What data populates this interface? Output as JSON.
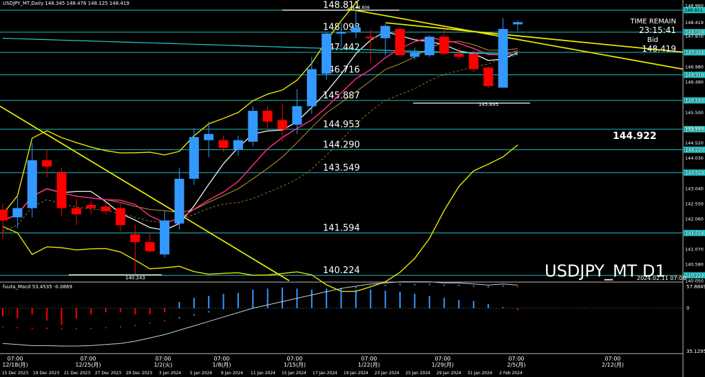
{
  "header": {
    "title": "USDJPY_MT,Daily 148.345 148.476 148.125 148.419"
  },
  "info": {
    "time_remain_label": "TIME REMAIN",
    "time_remain_value": "23:15:41",
    "bid_label": "Bid",
    "bid_value": "148.419",
    "symbol_label": "USDJPY_MT D1",
    "timestamp": "2024.02.11 07:00",
    "center_price": "144.922",
    "mid_ref": "145.895",
    "low_ref": "140.243",
    "high_ref": "148.808"
  },
  "macd": {
    "label": "fuuta_Macd 53.4535 -0.0869",
    "scale": [
      "57.8849",
      "0",
      "35.1295"
    ]
  },
  "colors": {
    "bull": "#3399ff",
    "bear": "#ff0000",
    "level": "#20c0c0",
    "bollinger": "#e8e800",
    "trend": "#e8e800",
    "ma_fast": "#e8e8e8",
    "ma_mid": "#ff2a80",
    "ma_slow": "#c09a30",
    "ma_teal": "#20d0d0",
    "macd_bar_up": "#3399ff",
    "macd_bar_down": "#ff0000",
    "macd_signal": "#cfcfcf"
  },
  "chart_data": {
    "type": "candlestick",
    "ylim": [
      140.05,
      148.96
    ],
    "y_ticks": [
      "148.960",
      "148.419",
      "148.098",
      "147.970",
      "147.442",
      "146.980",
      "146.716",
      "146.490",
      "145.887",
      "145.500",
      "145.010",
      "144.953",
      "144.520",
      "144.290",
      "144.030",
      "143.549",
      "143.040",
      "142.550",
      "142.060",
      "141.594",
      "141.070",
      "140.580",
      "140.224",
      "140.050"
    ],
    "price_levels": [
      "148.811",
      "148.098",
      "147.442",
      "146.716",
      "145.887",
      "144.953",
      "144.290",
      "143.549",
      "141.594",
      "140.224"
    ],
    "candles": [
      {
        "o": 142.35,
        "h": 142.55,
        "l": 141.4,
        "c": 142.0
      },
      {
        "o": 142.1,
        "h": 142.8,
        "l": 141.75,
        "c": 142.4
      },
      {
        "o": 142.4,
        "h": 144.5,
        "l": 142.1,
        "c": 143.95
      },
      {
        "o": 143.95,
        "h": 144.3,
        "l": 143.4,
        "c": 143.75
      },
      {
        "o": 143.55,
        "h": 143.7,
        "l": 142.15,
        "c": 142.4
      },
      {
        "o": 142.4,
        "h": 142.7,
        "l": 141.85,
        "c": 142.2
      },
      {
        "o": 142.5,
        "h": 142.65,
        "l": 142.2,
        "c": 142.4
      },
      {
        "o": 142.45,
        "h": 142.6,
        "l": 142.2,
        "c": 142.3
      },
      {
        "o": 142.4,
        "h": 142.6,
        "l": 141.65,
        "c": 141.85
      },
      {
        "o": 141.55,
        "h": 141.85,
        "l": 140.25,
        "c": 141.3
      },
      {
        "o": 141.3,
        "h": 141.6,
        "l": 140.95,
        "c": 141.0
      },
      {
        "o": 140.9,
        "h": 142.3,
        "l": 140.8,
        "c": 142.0
      },
      {
        "o": 141.9,
        "h": 143.7,
        "l": 141.7,
        "c": 143.35
      },
      {
        "o": 143.35,
        "h": 145.0,
        "l": 143.15,
        "c": 144.7
      },
      {
        "o": 144.6,
        "h": 145.2,
        "l": 144.05,
        "c": 144.8
      },
      {
        "o": 144.6,
        "h": 144.75,
        "l": 144.2,
        "c": 144.35
      },
      {
        "o": 144.3,
        "h": 144.75,
        "l": 144.1,
        "c": 144.6
      },
      {
        "o": 144.55,
        "h": 145.7,
        "l": 144.4,
        "c": 145.55
      },
      {
        "o": 145.55,
        "h": 145.7,
        "l": 144.95,
        "c": 145.2
      },
      {
        "o": 145.25,
        "h": 145.8,
        "l": 144.55,
        "c": 144.95
      },
      {
        "o": 145.1,
        "h": 146.25,
        "l": 144.8,
        "c": 145.7
      },
      {
        "o": 145.7,
        "h": 147.3,
        "l": 145.45,
        "c": 146.9
      },
      {
        "o": 146.75,
        "h": 148.1,
        "l": 146.55,
        "c": 148.05
      },
      {
        "o": 148.05,
        "h": 148.4,
        "l": 147.6,
        "c": 148.1
      },
      {
        "o": 148.1,
        "h": 148.8,
        "l": 147.9,
        "c": 148.25
      },
      {
        "o": 147.95,
        "h": 148.2,
        "l": 147.1,
        "c": 147.9
      },
      {
        "o": 147.9,
        "h": 148.35,
        "l": 147.35,
        "c": 148.3
      },
      {
        "o": 148.2,
        "h": 148.25,
        "l": 147.35,
        "c": 147.35
      },
      {
        "o": 147.3,
        "h": 147.6,
        "l": 147.2,
        "c": 147.45
      },
      {
        "o": 147.35,
        "h": 148.0,
        "l": 147.3,
        "c": 147.95
      },
      {
        "o": 147.95,
        "h": 148.2,
        "l": 147.35,
        "c": 147.4
      },
      {
        "o": 147.4,
        "h": 147.6,
        "l": 147.2,
        "c": 147.3
      },
      {
        "o": 147.4,
        "h": 147.5,
        "l": 146.8,
        "c": 146.9
      },
      {
        "o": 146.95,
        "h": 147.0,
        "l": 146.3,
        "c": 146.35
      },
      {
        "o": 146.3,
        "h": 148.55,
        "l": 146.3,
        "c": 148.2
      },
      {
        "o": 148.35,
        "h": 148.48,
        "l": 148.13,
        "c": 148.42
      }
    ],
    "macd_bars": [
      -0.4,
      -0.5,
      -0.3,
      -0.6,
      -0.8,
      -0.5,
      -0.3,
      -0.2,
      -0.2,
      -0.3,
      -0.3,
      -0.2,
      0.3,
      0.5,
      0.6,
      0.7,
      0.75,
      0.9,
      0.95,
      1.0,
      0.95,
      0.9,
      0.95,
      0.95,
      0.9,
      0.9,
      0.85,
      0.8,
      0.7,
      0.6,
      0.5,
      0.4,
      0.35,
      0.2,
      0.05,
      -0.1
    ],
    "macd_signal": [
      -1.6,
      -1.65,
      -1.7,
      -1.7,
      -1.72,
      -1.72,
      -1.7,
      -1.65,
      -1.6,
      -1.5,
      -1.35,
      -1.2,
      -1.0,
      -0.8,
      -0.6,
      -0.4,
      -0.2,
      0.0,
      0.15,
      0.3,
      0.45,
      0.6,
      0.75,
      0.9,
      1.0,
      1.1,
      1.15,
      1.2,
      1.2,
      1.2,
      1.15,
      1.15,
      1.1,
      1.05,
      1.1,
      1.05
    ],
    "x_tick_labels_top": [
      "07:00",
      "07:00",
      "07:00",
      "07:00",
      "07:00",
      "07:00",
      "07:00",
      "07:00",
      "07:00"
    ],
    "x_tick_labels_mid": [
      "12/18(月)",
      "12/25(月)",
      "1/2(火)",
      "1/8(月)",
      "1/15(月)",
      "1/22(月)",
      "1/29(月)",
      "2/5(月)",
      "2/12(月)"
    ],
    "x_date_labels": [
      "15 Dec 2023",
      "19 Dec 2023",
      "21 Dec 2023",
      "27 Dec 2023",
      "29 Dec 2023",
      "3 Jan 2024",
      "5 Jan 2024",
      "9 Jan 2024",
      "11 Jan 2024",
      "15 Jan 2024",
      "17 Jan 2024",
      "19 Jan 2024",
      "23 Jan 2024",
      "25 Jan 2024",
      "29 Jan 2024",
      "31 Jan 2024",
      "2 Feb 2024"
    ]
  }
}
